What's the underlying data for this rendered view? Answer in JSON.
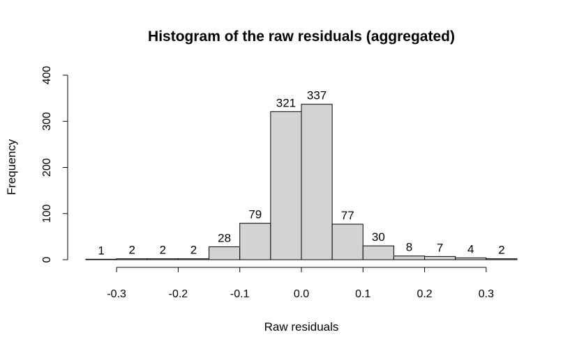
{
  "chart_data": {
    "type": "bar",
    "title": "Histogram of the raw residuals (aggregated)",
    "xlabel": "Raw residuals",
    "ylabel": "Frequency",
    "bin_edges": [
      -0.35,
      -0.3,
      -0.25,
      -0.2,
      -0.15,
      -0.1,
      -0.05,
      0.0,
      0.05,
      0.1,
      0.15,
      0.2,
      0.25,
      0.3,
      0.35
    ],
    "values": [
      1,
      2,
      2,
      2,
      28,
      79,
      321,
      337,
      77,
      30,
      8,
      7,
      4,
      2
    ],
    "bar_labels": [
      "1",
      "2",
      "2",
      "2",
      "28",
      "79",
      "321",
      "337",
      "77",
      "30",
      "8",
      "7",
      "4",
      "2"
    ],
    "xlim": [
      -0.35,
      0.35
    ],
    "ylim": [
      0,
      400
    ],
    "xticks": [
      -0.3,
      -0.2,
      -0.1,
      0.0,
      0.1,
      0.2,
      0.3
    ],
    "xtick_labels": [
      "-0.3",
      "-0.2",
      "-0.1",
      "0.0",
      "0.1",
      "0.2",
      "0.3"
    ],
    "yticks": [
      0,
      100,
      200,
      300,
      400
    ],
    "ytick_labels": [
      "0",
      "100",
      "200",
      "300",
      "400"
    ],
    "bar_color": "#d3d3d3",
    "edge_color": "#000000",
    "grid": false,
    "legend": "none"
  }
}
